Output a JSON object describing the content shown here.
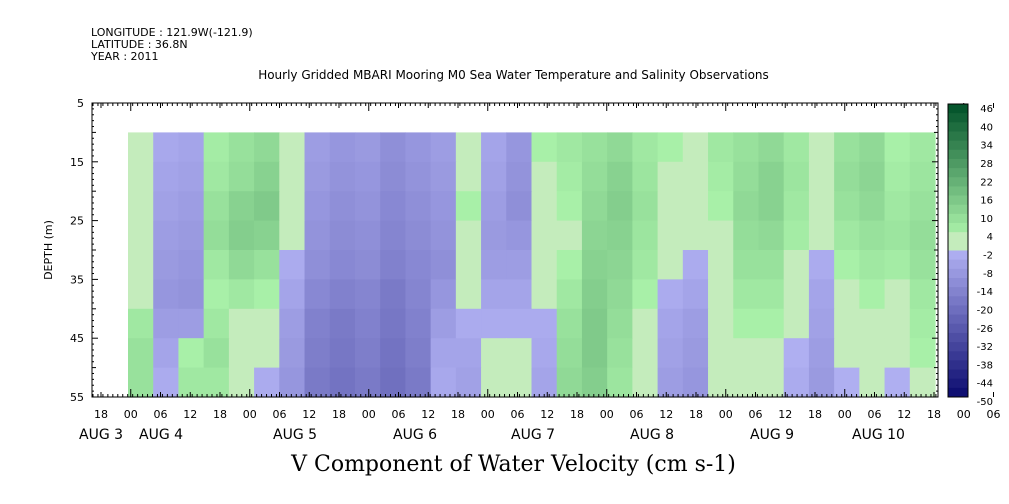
{
  "header": {
    "longitude": "LONGITUDE : 121.9W(-121.9)",
    "latitude": "LATITUDE : 36.8N",
    "year": "YEAR : 2011"
  },
  "title": "Hourly Gridded MBARI Mooring M0 Sea Water Temperature and Salinity Observations",
  "plot_title": "V Component of Water Velocity (cm s-1)",
  "chart_data": {
    "type": "heatmap",
    "title": "Hourly Gridded MBARI Mooring M0 Sea Water Temperature and Salinity Observations",
    "variable": "V Component of Water Velocity (cm s-1)",
    "ylabel": "DEPTH (m)",
    "ylim": [
      5,
      55
    ],
    "y_inverted": true,
    "y_ticks": [
      5,
      15,
      25,
      35,
      45,
      55
    ],
    "hour_ticks": [
      "18",
      "00",
      "06",
      "12",
      "18",
      "00",
      "06",
      "12",
      "18",
      "00",
      "06",
      "12",
      "18",
      "00",
      "06",
      "12",
      "18",
      "00",
      "06",
      "12",
      "18",
      "00",
      "06",
      "12",
      "18",
      "00",
      "06",
      "12",
      "18",
      "00",
      "06",
      "12"
    ],
    "date_labels": [
      "AUG 3",
      "AUG 4",
      "AUG 5",
      "AUG 6",
      "AUG 7",
      "AUG 8",
      "AUG 9",
      "AUG 10"
    ],
    "colorbar_ticks": [
      "46",
      "40",
      "34",
      "28",
      "22",
      "16",
      "10",
      "4",
      "-2",
      "-8",
      "-14",
      "-20",
      "-26",
      "-32",
      "-38",
      "-44",
      "-50"
    ],
    "colorbar_range": [
      -50,
      46
    ],
    "data_depth_range": [
      10,
      55
    ],
    "values_note": "cm s-1; columns left to right over time, rows depth 10..55 m",
    "depths": [
      10,
      15,
      20,
      25,
      30,
      35,
      40,
      45,
      50,
      55
    ],
    "time_columns": 32,
    "values": [
      [
        3,
        -5,
        -6,
        5,
        8,
        10,
        2,
        -8,
        -10,
        -9,
        -12,
        -10,
        -8,
        2,
        -6,
        -10,
        4,
        6,
        8,
        10,
        6,
        4,
        2,
        6,
        8,
        10,
        6,
        2,
        8,
        10,
        4,
        6
      ],
      [
        2,
        -6,
        -7,
        6,
        9,
        12,
        1,
        -9,
        -11,
        -10,
        -13,
        -11,
        -9,
        3,
        -7,
        -11,
        3,
        5,
        9,
        12,
        7,
        3,
        1,
        5,
        9,
        12,
        7,
        1,
        9,
        11,
        5,
        7
      ],
      [
        1,
        -7,
        -8,
        8,
        12,
        14,
        0,
        -10,
        -12,
        -11,
        -14,
        -12,
        -10,
        4,
        -8,
        -12,
        2,
        4,
        10,
        13,
        8,
        2,
        0,
        4,
        10,
        12,
        6,
        0,
        8,
        10,
        6,
        8
      ],
      [
        0,
        -8,
        -9,
        9,
        13,
        12,
        -2,
        -11,
        -13,
        -12,
        -15,
        -13,
        -11,
        3,
        -9,
        -10,
        1,
        3,
        11,
        12,
        7,
        0,
        -2,
        3,
        9,
        10,
        5,
        -2,
        6,
        8,
        7,
        9
      ],
      [
        -2,
        -9,
        -10,
        6,
        10,
        8,
        -4,
        -12,
        -14,
        -13,
        -16,
        -14,
        -12,
        1,
        -8,
        -8,
        0,
        4,
        12,
        11,
        6,
        -2,
        -4,
        2,
        8,
        8,
        3,
        -4,
        4,
        6,
        5,
        8
      ],
      [
        2,
        -10,
        -11,
        4,
        6,
        4,
        -6,
        -14,
        -16,
        -15,
        -18,
        -15,
        -10,
        -2,
        -6,
        -6,
        -2,
        6,
        13,
        10,
        4,
        -4,
        -6,
        1,
        6,
        6,
        1,
        -6,
        2,
        4,
        3,
        6
      ],
      [
        6,
        -8,
        -8,
        6,
        2,
        0,
        -8,
        -16,
        -18,
        -16,
        -19,
        -16,
        -8,
        -4,
        -4,
        -4,
        -4,
        8,
        14,
        9,
        3,
        -6,
        -8,
        0,
        4,
        4,
        -1,
        -7,
        0,
        2,
        1,
        5
      ],
      [
        8,
        -6,
        4,
        8,
        0,
        -2,
        -9,
        -17,
        -19,
        -17,
        -20,
        -17,
        -6,
        -6,
        -2,
        -2,
        -5,
        9,
        14,
        8,
        2,
        -7,
        -9,
        -1,
        2,
        2,
        -3,
        -8,
        -2,
        0,
        -1,
        4
      ],
      [
        8,
        -4,
        6,
        6,
        -2,
        -4,
        -10,
        -18,
        -20,
        -18,
        -21,
        -18,
        -5,
        -7,
        -1,
        -1,
        -6,
        10,
        13,
        7,
        1,
        -8,
        -10,
        -2,
        0,
        0,
        -4,
        -9,
        -3,
        -2,
        -3,
        3
      ],
      [
        6,
        -3,
        5,
        4,
        -3,
        -5,
        -11,
        -19,
        -21,
        -19,
        -22,
        -19,
        -4,
        -8,
        0,
        0,
        -7,
        9,
        12,
        6,
        0,
        -9,
        -11,
        -3,
        -1,
        -1,
        -5,
        -10,
        -4,
        -3,
        -4,
        2
      ]
    ]
  }
}
